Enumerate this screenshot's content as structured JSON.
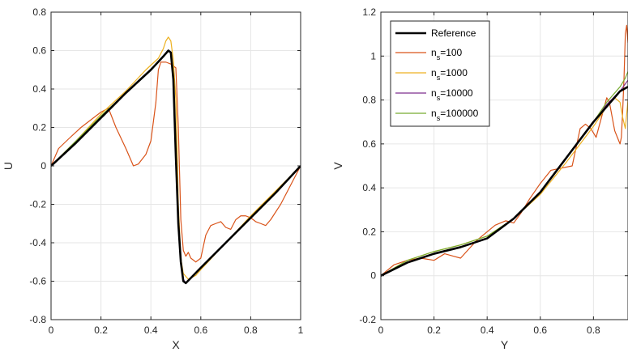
{
  "chart_data": [
    {
      "type": "line",
      "xlabel": "X",
      "ylabel": "U",
      "xlim": [
        0,
        1
      ],
      "ylim": [
        -0.8,
        0.8
      ],
      "xticks": [
        0,
        0.2,
        0.4,
        0.6,
        0.8,
        1
      ],
      "yticks": [
        -0.8,
        -0.6,
        -0.4,
        -0.2,
        0,
        0.2,
        0.4,
        0.6,
        0.8
      ],
      "xtick_labels": [
        "0",
        "0.2",
        "0.4",
        "0.6",
        "0.8",
        "1"
      ],
      "ytick_labels": [
        "-0.8",
        "-0.6",
        "-0.4",
        "-0.2",
        "0",
        "0.2",
        "0.4",
        "0.6",
        "0.8"
      ],
      "grid": true,
      "series": [
        {
          "name": "n_s=100",
          "color": "#D95319",
          "width": 1.2,
          "x": [
            0,
            0.03,
            0.07,
            0.12,
            0.17,
            0.2,
            0.23,
            0.26,
            0.3,
            0.33,
            0.35,
            0.38,
            0.4,
            0.42,
            0.43,
            0.44,
            0.46,
            0.48,
            0.5,
            0.51,
            0.52,
            0.53,
            0.54,
            0.55,
            0.56,
            0.58,
            0.6,
            0.62,
            0.64,
            0.66,
            0.68,
            0.7,
            0.72,
            0.74,
            0.76,
            0.78,
            0.8,
            0.82,
            0.84,
            0.86,
            0.88,
            0.92,
            0.96,
            1
          ],
          "y": [
            0,
            0.09,
            0.14,
            0.2,
            0.25,
            0.28,
            0.3,
            0.2,
            0.09,
            0.0,
            0.01,
            0.06,
            0.13,
            0.33,
            0.5,
            0.54,
            0.54,
            0.53,
            0.51,
            0.2,
            -0.28,
            -0.44,
            -0.47,
            -0.45,
            -0.48,
            -0.5,
            -0.48,
            -0.36,
            -0.31,
            -0.3,
            -0.29,
            -0.32,
            -0.33,
            -0.28,
            -0.26,
            -0.26,
            -0.27,
            -0.29,
            -0.3,
            -0.31,
            -0.28,
            -0.2,
            -0.1,
            0
          ]
        },
        {
          "name": "n_s=1000",
          "color": "#EDB120",
          "width": 1.2,
          "x": [
            0,
            0.1,
            0.2,
            0.3,
            0.38,
            0.43,
            0.45,
            0.46,
            0.47,
            0.48,
            0.49,
            0.5,
            0.505,
            0.51,
            0.52,
            0.53,
            0.55,
            0.58,
            0.6,
            0.7,
            0.8,
            0.9,
            1
          ],
          "y": [
            0,
            0.13,
            0.27,
            0.39,
            0.5,
            0.56,
            0.61,
            0.65,
            0.67,
            0.65,
            0.55,
            0.35,
            0.1,
            -0.2,
            -0.48,
            -0.56,
            -0.59,
            -0.57,
            -0.54,
            -0.4,
            -0.26,
            -0.13,
            0
          ]
        },
        {
          "name": "n_s=10000",
          "color": "#7E2F8E",
          "width": 1.2,
          "x": [
            0,
            0.1,
            0.2,
            0.3,
            0.4,
            0.45,
            0.47,
            0.48,
            0.49,
            0.5,
            0.51,
            0.52,
            0.53,
            0.54,
            0.6,
            0.7,
            0.8,
            0.9,
            1
          ],
          "y": [
            0,
            0.12,
            0.25,
            0.38,
            0.5,
            0.57,
            0.6,
            0.59,
            0.45,
            0.05,
            -0.3,
            -0.5,
            -0.59,
            -0.61,
            -0.53,
            -0.4,
            -0.27,
            -0.14,
            0
          ]
        },
        {
          "name": "n_s=100000",
          "color": "#77AC30",
          "width": 1.2,
          "x": [
            0,
            0.1,
            0.2,
            0.3,
            0.4,
            0.45,
            0.47,
            0.48,
            0.49,
            0.5,
            0.51,
            0.52,
            0.53,
            0.54,
            0.6,
            0.7,
            0.8,
            0.9,
            1
          ],
          "y": [
            0,
            0.13,
            0.26,
            0.38,
            0.5,
            0.57,
            0.6,
            0.59,
            0.45,
            0.05,
            -0.3,
            -0.5,
            -0.6,
            -0.61,
            -0.53,
            -0.4,
            -0.27,
            -0.14,
            0
          ]
        },
        {
          "name": "Reference",
          "color": "#000000",
          "width": 2.6,
          "x": [
            0,
            0.1,
            0.2,
            0.3,
            0.4,
            0.45,
            0.47,
            0.48,
            0.49,
            0.5,
            0.51,
            0.52,
            0.53,
            0.54,
            0.6,
            0.7,
            0.8,
            0.9,
            1
          ],
          "y": [
            0,
            0.12,
            0.25,
            0.38,
            0.5,
            0.57,
            0.6,
            0.59,
            0.45,
            0.05,
            -0.3,
            -0.5,
            -0.6,
            -0.61,
            -0.53,
            -0.4,
            -0.27,
            -0.14,
            0
          ]
        }
      ]
    },
    {
      "type": "line",
      "xlabel": "Y",
      "ylabel": "V",
      "xlim": [
        0,
        0.93
      ],
      "ylim": [
        -0.2,
        1.2
      ],
      "xticks": [
        0,
        0.2,
        0.4,
        0.6,
        0.8
      ],
      "yticks": [
        -0.2,
        0,
        0.2,
        0.4,
        0.6,
        0.8,
        1,
        1.2
      ],
      "xtick_labels": [
        "0",
        "0.2",
        "0.4",
        "0.6",
        "0.8"
      ],
      "ytick_labels": [
        "-0.2",
        "0",
        "0.2",
        "0.4",
        "0.6",
        "0.8",
        "1",
        "1.2"
      ],
      "grid": true,
      "legend": {
        "position": "top-left",
        "entries": [
          {
            "label": "Reference",
            "main": "Reference",
            "sub": "",
            "post": "",
            "color": "#000000",
            "width": 2.6
          },
          {
            "label": "n_s=100",
            "main": "n",
            "sub": "s",
            "post": "=100",
            "color": "#D95319",
            "width": 1.2
          },
          {
            "label": "n_s=1000",
            "main": "n",
            "sub": "s",
            "post": "=1000",
            "color": "#EDB120",
            "width": 1.2
          },
          {
            "label": "n_s=10000",
            "main": "n",
            "sub": "s",
            "post": "=10000",
            "color": "#7E2F8E",
            "width": 1.2
          },
          {
            "label": "n_s=100000",
            "main": "n",
            "sub": "s",
            "post": "=100000",
            "color": "#77AC30",
            "width": 1.2
          }
        ]
      },
      "series": [
        {
          "name": "n_s=100",
          "color": "#D95319",
          "width": 1.2,
          "x": [
            0,
            0.05,
            0.1,
            0.15,
            0.2,
            0.24,
            0.27,
            0.3,
            0.33,
            0.36,
            0.4,
            0.43,
            0.45,
            0.47,
            0.5,
            0.53,
            0.56,
            0.6,
            0.64,
            0.68,
            0.72,
            0.75,
            0.77,
            0.79,
            0.81,
            0.83,
            0.85,
            0.86,
            0.88,
            0.9,
            0.905,
            0.91,
            0.915,
            0.92,
            0.925,
            0.93
          ],
          "y": [
            0,
            0.05,
            0.07,
            0.08,
            0.07,
            0.1,
            0.09,
            0.08,
            0.12,
            0.16,
            0.2,
            0.23,
            0.24,
            0.25,
            0.24,
            0.29,
            0.35,
            0.42,
            0.48,
            0.49,
            0.5,
            0.67,
            0.69,
            0.67,
            0.63,
            0.72,
            0.81,
            0.79,
            0.66,
            0.6,
            0.63,
            0.75,
            0.9,
            1.1,
            1.14,
            1.06
          ]
        },
        {
          "name": "n_s=1000",
          "color": "#EDB120",
          "width": 1.2,
          "x": [
            0,
            0.1,
            0.2,
            0.3,
            0.4,
            0.5,
            0.6,
            0.7,
            0.75,
            0.8,
            0.85,
            0.88,
            0.9,
            0.91,
            0.92,
            0.93
          ],
          "y": [
            0,
            0.07,
            0.11,
            0.14,
            0.18,
            0.26,
            0.37,
            0.52,
            0.6,
            0.68,
            0.77,
            0.81,
            0.79,
            0.72,
            0.67,
            0.8
          ]
        },
        {
          "name": "n_s=10000",
          "color": "#7E2F8E",
          "width": 1.2,
          "x": [
            0,
            0.1,
            0.2,
            0.3,
            0.4,
            0.5,
            0.6,
            0.7,
            0.8,
            0.85,
            0.9,
            0.93
          ],
          "y": [
            0,
            0.06,
            0.1,
            0.13,
            0.17,
            0.26,
            0.38,
            0.54,
            0.7,
            0.78,
            0.84,
            0.89
          ]
        },
        {
          "name": "n_s=100000",
          "color": "#77AC30",
          "width": 1.2,
          "x": [
            0,
            0.1,
            0.2,
            0.3,
            0.4,
            0.5,
            0.6,
            0.7,
            0.8,
            0.85,
            0.9,
            0.92,
            0.93
          ],
          "y": [
            0,
            0.07,
            0.11,
            0.14,
            0.18,
            0.26,
            0.38,
            0.54,
            0.7,
            0.79,
            0.86,
            0.9,
            0.93
          ]
        },
        {
          "name": "Reference",
          "color": "#000000",
          "width": 2.6,
          "x": [
            0,
            0.1,
            0.2,
            0.3,
            0.4,
            0.5,
            0.6,
            0.7,
            0.8,
            0.85,
            0.9,
            0.93
          ],
          "y": [
            0,
            0.06,
            0.1,
            0.13,
            0.17,
            0.26,
            0.38,
            0.54,
            0.7,
            0.77,
            0.84,
            0.86
          ]
        }
      ]
    }
  ]
}
